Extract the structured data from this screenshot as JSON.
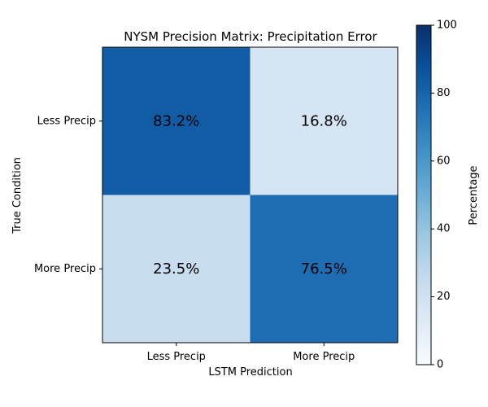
{
  "chart_data": {
    "type": "heatmap",
    "title": "NYSM Precision Matrix: Precipitation Error",
    "xlabel": "LSTM Prediction",
    "ylabel": "True Condition",
    "x_categories": [
      "Less Precip",
      "More Precip"
    ],
    "y_categories": [
      "Less Precip",
      "More Precip"
    ],
    "values": [
      [
        83.2,
        16.8
      ],
      [
        23.5,
        76.5
      ]
    ],
    "cell_labels": [
      [
        "83.2%",
        "16.8%"
      ],
      [
        "23.5%",
        "76.5%"
      ]
    ],
    "colormap": "Blues",
    "colorbar": {
      "label": "Percentage",
      "range": [
        0,
        100
      ],
      "ticks": [
        0,
        20,
        40,
        60,
        80,
        100
      ]
    }
  },
  "colors": {
    "background": "#ffffff",
    "axis": "#000000",
    "text": "#000000"
  }
}
